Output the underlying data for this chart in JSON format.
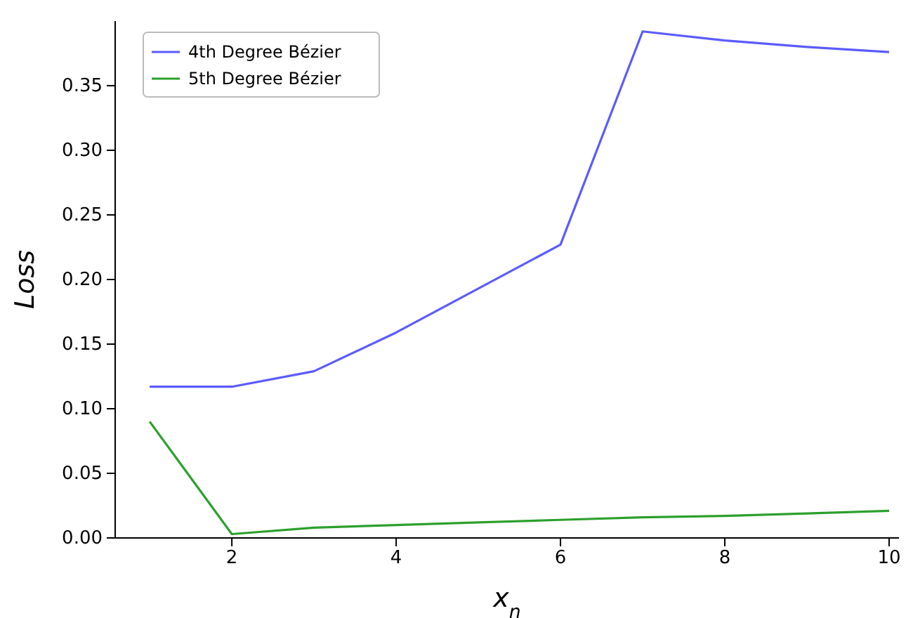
{
  "chart_data": {
    "type": "line",
    "xlabel": "x$_{n}$",
    "ylabel": "Loss",
    "x": [
      1,
      2,
      3,
      4,
      5,
      6,
      7,
      8,
      9,
      10
    ],
    "series": [
      {
        "name": "4th Degree Bézier",
        "color": "#5b5bff",
        "values": [
          0.117,
          0.117,
          0.129,
          0.159,
          0.193,
          0.227,
          0.392,
          0.385,
          0.38,
          0.376
        ]
      },
      {
        "name": "5th Degree Bézier",
        "color": "#2ca02c",
        "values": [
          0.09,
          0.003,
          0.008,
          0.01,
          0.012,
          0.014,
          0.016,
          0.017,
          0.019,
          0.021
        ]
      }
    ],
    "xlim": [
      0.58,
      10.12
    ],
    "ylim": [
      0,
      0.4
    ],
    "xticks": [
      2,
      4,
      6,
      8,
      10
    ],
    "yticks": [
      {
        "value": 0,
        "label": "0.00"
      },
      {
        "value": 0.05,
        "label": "0.05"
      },
      {
        "value": 0.1,
        "label": "0.10"
      },
      {
        "value": 0.15,
        "label": "0.15"
      },
      {
        "value": 0.2,
        "label": "0.20"
      },
      {
        "value": 0.25,
        "label": "0.25"
      },
      {
        "value": 0.3,
        "label": "0.30"
      },
      {
        "value": 0.35,
        "label": "0.35"
      }
    ],
    "legend": "top left",
    "grid": false,
    "marker": "none",
    "line_style": "solid"
  }
}
